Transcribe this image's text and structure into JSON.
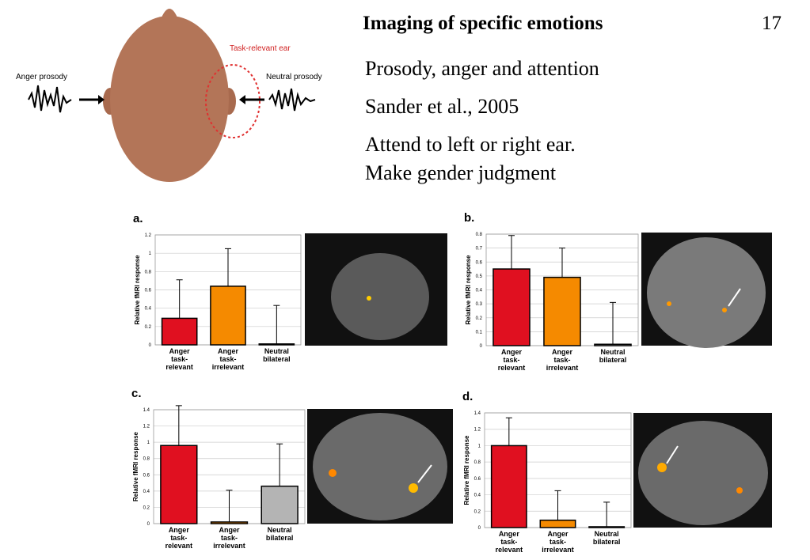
{
  "slide": {
    "title": "Imaging of specific emotions",
    "page_number": "17",
    "lines": [
      "Prosody, anger and attention",
      "Sander et al., 2005",
      "Attend to left or right ear.",
      "Make gender judgment"
    ],
    "diagram": {
      "left_label": "Anger prosody",
      "right_label": "Neutral prosody",
      "ear_label": "Task-relevant ear"
    }
  },
  "chart_data": [
    {
      "type": "bar",
      "panel": "a.",
      "y_label": "Relative fMRI response",
      "categories": [
        "Anger\ntask-\nrelevant",
        "Anger\ntask-\nirrelevant",
        "Neutral\nbilateral"
      ],
      "values": [
        0.29,
        0.64,
        0.01
      ],
      "errors": [
        0.42,
        0.41,
        0.42
      ],
      "colors": [
        "#e01020",
        "#f58a00",
        "#b4b4b4"
      ],
      "ylim": [
        0,
        1.2
      ],
      "yticks": [
        0,
        0.2,
        0.4,
        0.6,
        0.8,
        1,
        1.2
      ],
      "grid": true
    },
    {
      "type": "bar",
      "panel": "b.",
      "y_label": "Relative fMRI response",
      "categories": [
        "Anger\ntask-\nrelevant",
        "Anger\ntask-\nirrelevant",
        "Neutral\nbilateral"
      ],
      "values": [
        0.55,
        0.49,
        0.01
      ],
      "errors": [
        0.24,
        0.21,
        0.3
      ],
      "colors": [
        "#e01020",
        "#f58a00",
        "#b4b4b4"
      ],
      "ylim": [
        0,
        0.8
      ],
      "yticks": [
        0,
        0.1,
        0.2,
        0.3,
        0.4,
        0.5,
        0.6,
        0.7,
        0.8
      ],
      "grid": true
    },
    {
      "type": "bar",
      "panel": "c.",
      "y_label": "Relative fMRI response",
      "categories": [
        "Anger\ntask-\nrelevant",
        "Anger\ntask-\nirrelevant",
        "Neutral\nbilateral"
      ],
      "values": [
        0.96,
        0.02,
        0.46
      ],
      "errors": [
        0.49,
        0.39,
        0.52
      ],
      "colors": [
        "#e01020",
        "#f58a00",
        "#b4b4b4"
      ],
      "ylim": [
        0,
        1.4
      ],
      "yticks": [
        0,
        0.2,
        0.4,
        0.6,
        0.8,
        1,
        1.2,
        1.4
      ],
      "grid": true
    },
    {
      "type": "bar",
      "panel": "d.",
      "y_label": "Relative fMRI response",
      "categories": [
        "Anger\ntask-\nrelevant",
        "Anger\ntask-\nirrelevant",
        "Neutral\nbilateral"
      ],
      "values": [
        1.0,
        0.09,
        0.01
      ],
      "errors": [
        0.34,
        0.36,
        0.3
      ],
      "colors": [
        "#e01020",
        "#f58a00",
        "#b4b4b4"
      ],
      "ylim": [
        0,
        1.4
      ],
      "yticks": [
        0,
        0.2,
        0.4,
        0.6,
        0.8,
        1,
        1.2,
        1.4
      ],
      "grid": true
    }
  ]
}
